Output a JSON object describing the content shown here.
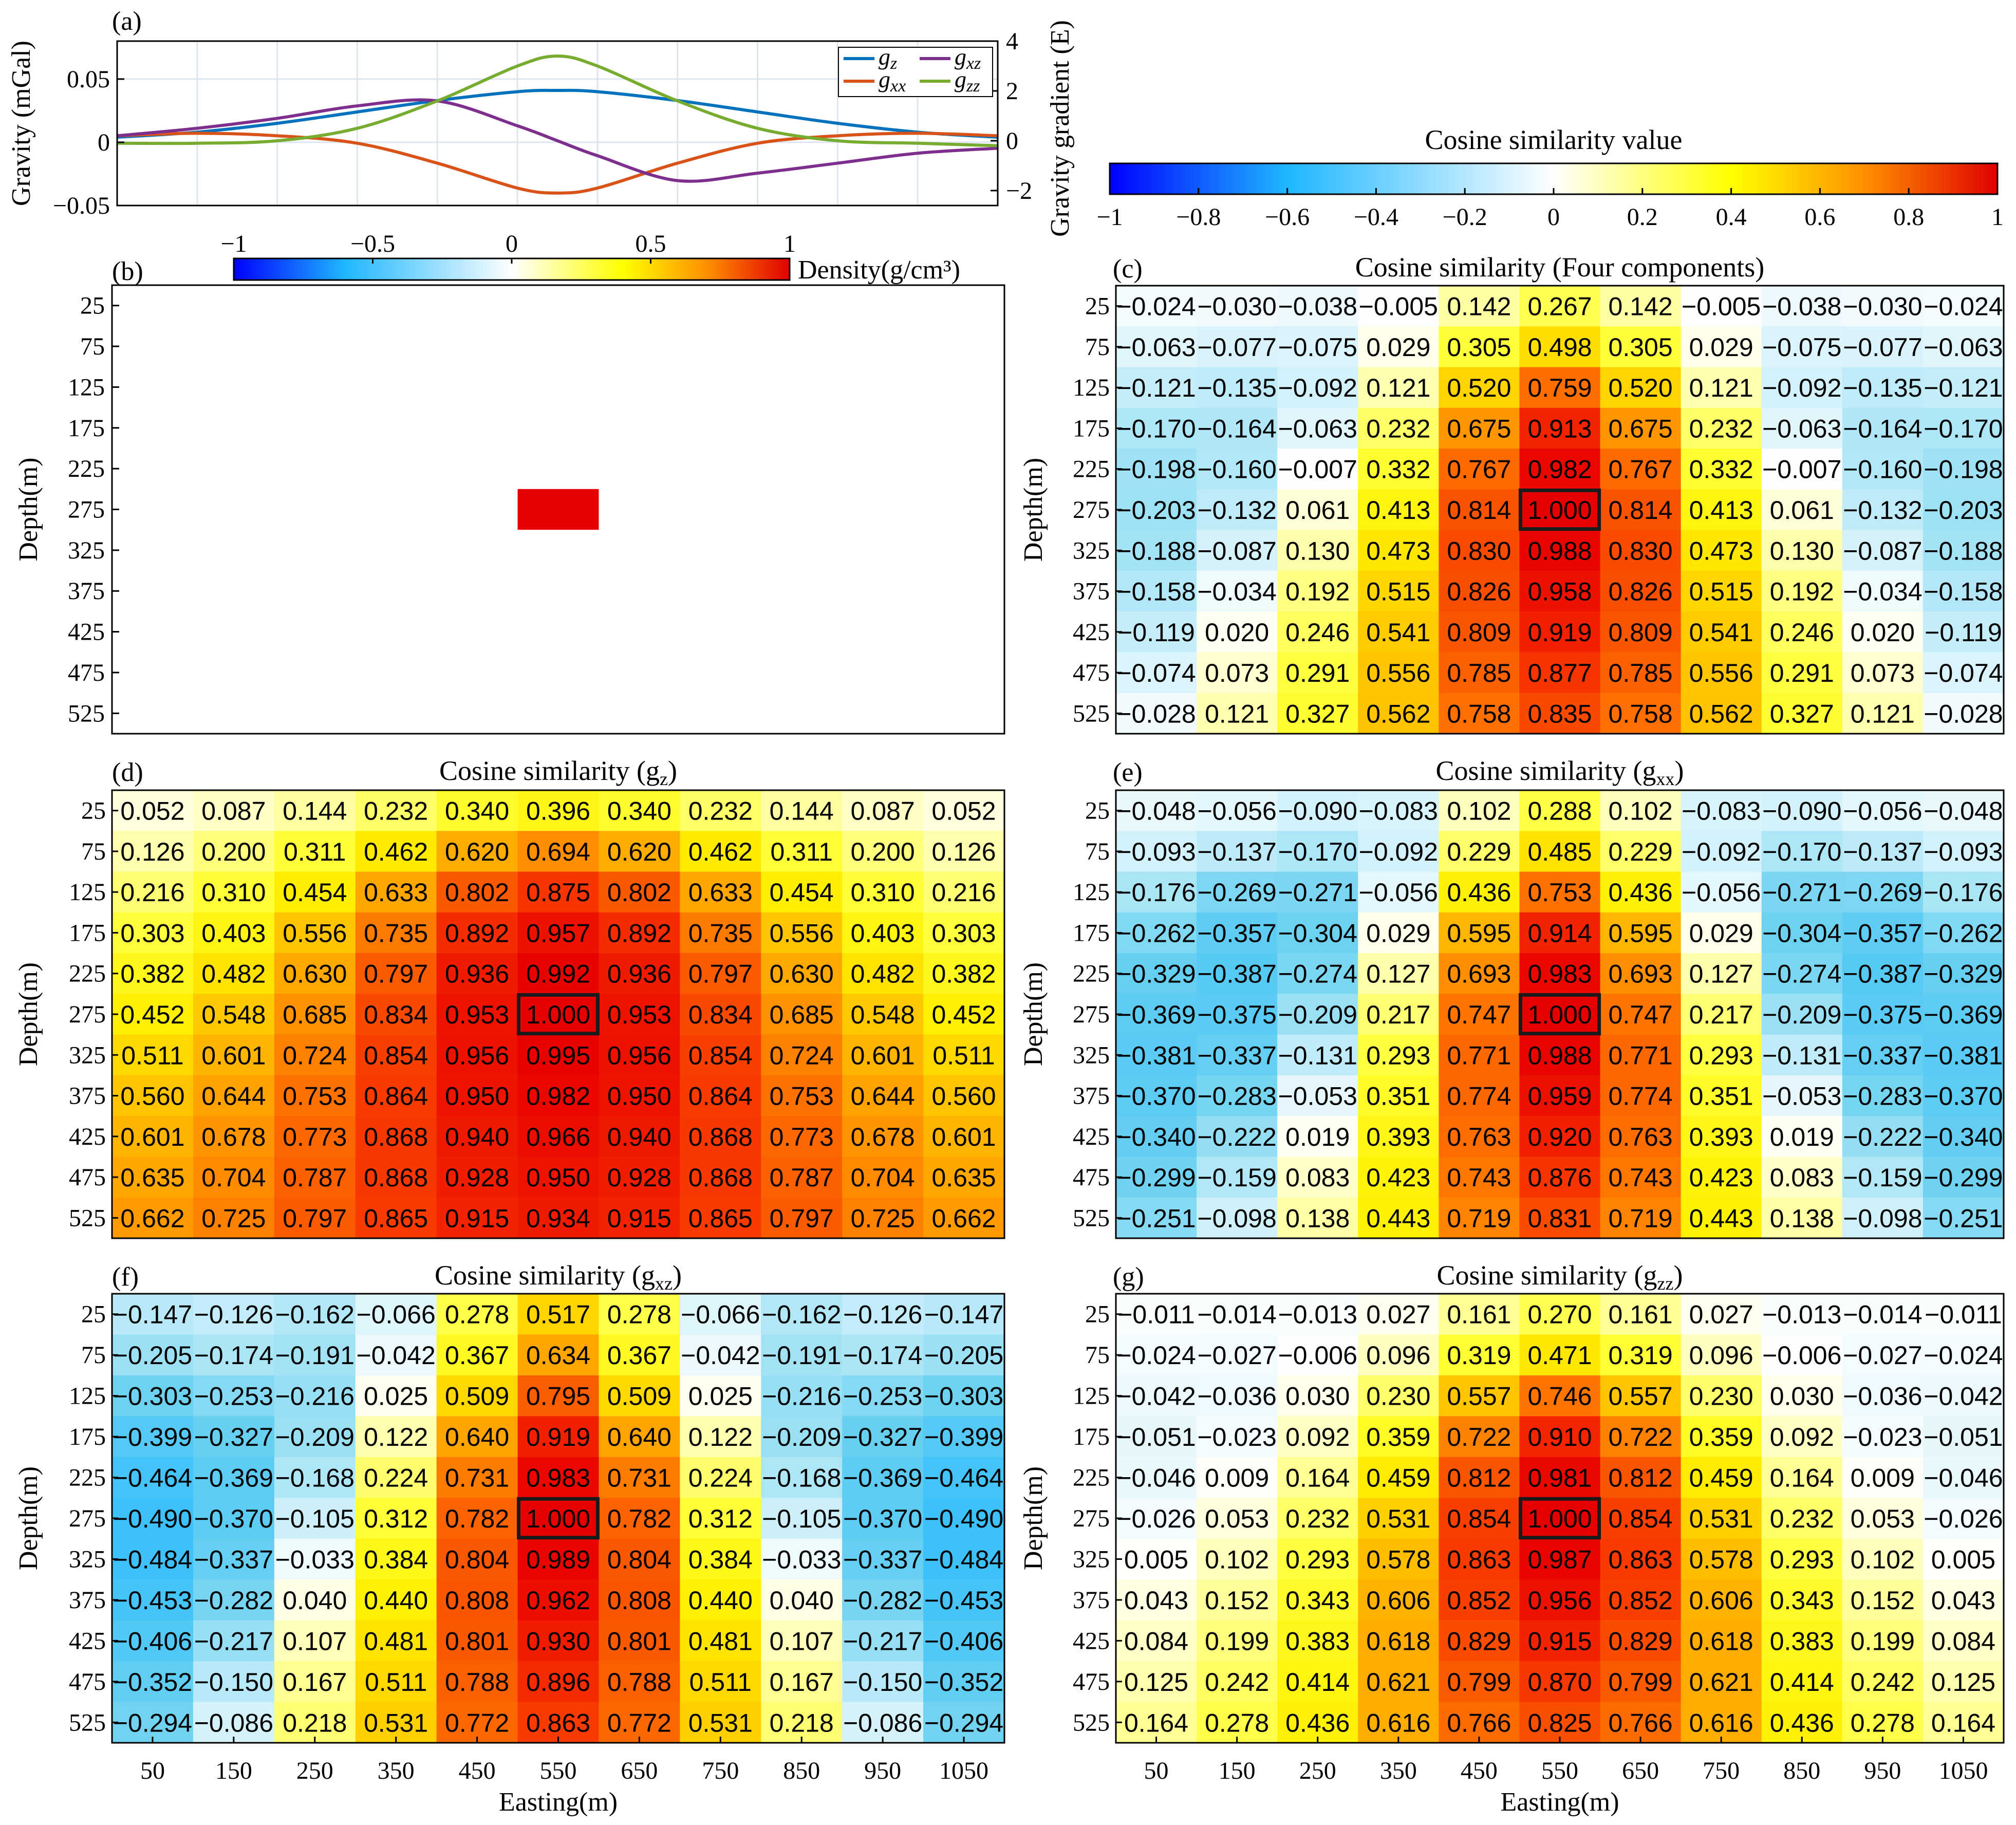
{
  "chart_data": [
    {
      "panel": "(a)",
      "type": "line",
      "ylabel": "Gravity (mGal)",
      "ylabel_right": "Gravity gradient (E)",
      "ylim": [
        -0.05,
        0.08
      ],
      "ylim_right": [
        -2.6,
        4.0
      ],
      "yticks": [
        "0.05",
        "0",
        "-0.05"
      ],
      "yticks_right": [
        "4",
        "2",
        "0",
        "-2"
      ],
      "xlim": [
        0,
        1100
      ],
      "x": [
        0,
        100,
        200,
        300,
        400,
        500,
        550,
        600,
        700,
        800,
        900,
        1000,
        1100
      ],
      "legend": {
        "position": "top-right"
      },
      "series": [
        {
          "name": "g_z",
          "label": "g",
          "sub": "z",
          "axis": "left",
          "color": "#0072BD",
          "values": [
            0.004,
            0.008,
            0.015,
            0.024,
            0.033,
            0.04,
            0.041,
            0.04,
            0.033,
            0.024,
            0.015,
            0.008,
            0.004
          ]
        },
        {
          "name": "g_xx",
          "label": "g",
          "sub": "xx",
          "axis": "right",
          "color": "#D95319",
          "values": [
            0.2,
            0.3,
            0.2,
            -0.1,
            -0.9,
            -1.9,
            -2.1,
            -1.9,
            -0.9,
            -0.1,
            0.2,
            0.3,
            0.2
          ]
        },
        {
          "name": "g_xz",
          "label": "g",
          "sub": "xz",
          "axis": "right",
          "color": "#7E2F8E",
          "values": [
            0.2,
            0.5,
            0.9,
            1.4,
            1.6,
            0.6,
            0.0,
            -0.6,
            -1.6,
            -1.3,
            -0.9,
            -0.5,
            -0.3
          ]
        },
        {
          "name": "g_zz",
          "label": "g",
          "sub": "zz",
          "axis": "right",
          "color": "#77AC30",
          "values": [
            -0.1,
            -0.1,
            0.0,
            0.5,
            1.6,
            3.0,
            3.4,
            3.0,
            1.6,
            0.5,
            0.0,
            -0.1,
            -0.2
          ]
        }
      ]
    },
    {
      "panel": "(b)",
      "type": "heatmap",
      "ylabel": "Depth(m)",
      "colorbar_label": "Density(g/cm³)",
      "colorbar_ticks": [
        "−1",
        "−0.5",
        "0",
        "0.5",
        "1"
      ],
      "depths": [
        "25",
        "75",
        "125",
        "175",
        "225",
        "275",
        "325",
        "375",
        "425",
        "475",
        "525"
      ],
      "block": {
        "easting": [
          500,
          600
        ],
        "depth": [
          250,
          300
        ],
        "density": 1.0
      }
    },
    {
      "panel": "colorbar",
      "type": "heatmap",
      "title": "Cosine similarity value",
      "ticks": [
        "−1",
        "−0.8",
        "−0.6",
        "−0.4",
        "−0.2",
        "0",
        "0.2",
        "0.4",
        "0.6",
        "0.8",
        "1"
      ]
    },
    {
      "panel": "(c)",
      "type": "table",
      "title": "Cosine similarity (Four components)",
      "ylabel": "Depth(m)",
      "xlabel": "",
      "highlight": [
        5,
        5
      ],
      "depths": [
        "25",
        "75",
        "125",
        "175",
        "225",
        "275",
        "325",
        "375",
        "425",
        "475",
        "525"
      ],
      "eastings": [
        "50",
        "150",
        "250",
        "350",
        "450",
        "550",
        "650",
        "750",
        "850",
        "950",
        "1050"
      ],
      "rows": [
        [
          "−0.024",
          "−0.030",
          "−0.038",
          "−0.005",
          "0.142",
          "0.267",
          "0.142",
          "−0.005",
          "−0.038",
          "−0.030",
          "−0.024"
        ],
        [
          "−0.063",
          "−0.077",
          "−0.075",
          "0.029",
          "0.305",
          "0.498",
          "0.305",
          "0.029",
          "−0.075",
          "−0.077",
          "−0.063"
        ],
        [
          "−0.121",
          "−0.135",
          "−0.092",
          "0.121",
          "0.520",
          "0.759",
          "0.520",
          "0.121",
          "−0.092",
          "−0.135",
          "−0.121"
        ],
        [
          "−0.170",
          "−0.164",
          "−0.063",
          "0.232",
          "0.675",
          "0.913",
          "0.675",
          "0.232",
          "−0.063",
          "−0.164",
          "−0.170"
        ],
        [
          "−0.198",
          "−0.160",
          "−0.007",
          "0.332",
          "0.767",
          "0.982",
          "0.767",
          "0.332",
          "−0.007",
          "−0.160",
          "−0.198"
        ],
        [
          "−0.203",
          "−0.132",
          "0.061",
          "0.413",
          "0.814",
          "1.000",
          "0.814",
          "0.413",
          "0.061",
          "−0.132",
          "−0.203"
        ],
        [
          "−0.188",
          "−0.087",
          "0.130",
          "0.473",
          "0.830",
          "0.988",
          "0.830",
          "0.473",
          "0.130",
          "−0.087",
          "−0.188"
        ],
        [
          "−0.158",
          "−0.034",
          "0.192",
          "0.515",
          "0.826",
          "0.958",
          "0.826",
          "0.515",
          "0.192",
          "−0.034",
          "−0.158"
        ],
        [
          "−0.119",
          "0.020",
          "0.246",
          "0.541",
          "0.809",
          "0.919",
          "0.809",
          "0.541",
          "0.246",
          "0.020",
          "−0.119"
        ],
        [
          "−0.074",
          "0.073",
          "0.291",
          "0.556",
          "0.785",
          "0.877",
          "0.785",
          "0.556",
          "0.291",
          "0.073",
          "−0.074"
        ],
        [
          "−0.028",
          "0.121",
          "0.327",
          "0.562",
          "0.758",
          "0.835",
          "0.758",
          "0.562",
          "0.327",
          "0.121",
          "−0.028"
        ]
      ]
    },
    {
      "panel": "(d)",
      "type": "table",
      "title": "Cosine similarity (g",
      "title_sub": "z",
      "title_end": ")",
      "ylabel": "Depth(m)",
      "xlabel": "",
      "highlight": [
        5,
        5
      ],
      "depths": [
        "25",
        "75",
        "125",
        "175",
        "225",
        "275",
        "325",
        "375",
        "425",
        "475",
        "525"
      ],
      "eastings": [
        "50",
        "150",
        "250",
        "350",
        "450",
        "550",
        "650",
        "750",
        "850",
        "950",
        "1050"
      ],
      "rows": [
        [
          "0.052",
          "0.087",
          "0.144",
          "0.232",
          "0.340",
          "0.396",
          "0.340",
          "0.232",
          "0.144",
          "0.087",
          "0.052"
        ],
        [
          "0.126",
          "0.200",
          "0.311",
          "0.462",
          "0.620",
          "0.694",
          "0.620",
          "0.462",
          "0.311",
          "0.200",
          "0.126"
        ],
        [
          "0.216",
          "0.310",
          "0.454",
          "0.633",
          "0.802",
          "0.875",
          "0.802",
          "0.633",
          "0.454",
          "0.310",
          "0.216"
        ],
        [
          "0.303",
          "0.403",
          "0.556",
          "0.735",
          "0.892",
          "0.957",
          "0.892",
          "0.735",
          "0.556",
          "0.403",
          "0.303"
        ],
        [
          "0.382",
          "0.482",
          "0.630",
          "0.797",
          "0.936",
          "0.992",
          "0.936",
          "0.797",
          "0.630",
          "0.482",
          "0.382"
        ],
        [
          "0.452",
          "0.548",
          "0.685",
          "0.834",
          "0.953",
          "1.000",
          "0.953",
          "0.834",
          "0.685",
          "0.548",
          "0.452"
        ],
        [
          "0.511",
          "0.601",
          "0.724",
          "0.854",
          "0.956",
          "0.995",
          "0.956",
          "0.854",
          "0.724",
          "0.601",
          "0.511"
        ],
        [
          "0.560",
          "0.644",
          "0.753",
          "0.864",
          "0.950",
          "0.982",
          "0.950",
          "0.864",
          "0.753",
          "0.644",
          "0.560"
        ],
        [
          "0.601",
          "0.678",
          "0.773",
          "0.868",
          "0.940",
          "0.966",
          "0.940",
          "0.868",
          "0.773",
          "0.678",
          "0.601"
        ],
        [
          "0.635",
          "0.704",
          "0.787",
          "0.868",
          "0.928",
          "0.950",
          "0.928",
          "0.868",
          "0.787",
          "0.704",
          "0.635"
        ],
        [
          "0.662",
          "0.725",
          "0.797",
          "0.865",
          "0.915",
          "0.934",
          "0.915",
          "0.865",
          "0.797",
          "0.725",
          "0.662"
        ]
      ]
    },
    {
      "panel": "(e)",
      "type": "table",
      "title": "Cosine similarity (g",
      "title_sub": "xx",
      "title_end": ")",
      "ylabel": "Depth(m)",
      "xlabel": "",
      "highlight": [
        5,
        5
      ],
      "depths": [
        "25",
        "75",
        "125",
        "175",
        "225",
        "275",
        "325",
        "375",
        "425",
        "475",
        "525"
      ],
      "eastings": [
        "50",
        "150",
        "250",
        "350",
        "450",
        "550",
        "650",
        "750",
        "850",
        "950",
        "1050"
      ],
      "rows": [
        [
          "−0.048",
          "−0.056",
          "−0.090",
          "−0.083",
          "0.102",
          "0.288",
          "0.102",
          "−0.083",
          "−0.090",
          "−0.056",
          "−0.048"
        ],
        [
          "−0.093",
          "−0.137",
          "−0.170",
          "−0.092",
          "0.229",
          "0.485",
          "0.229",
          "−0.092",
          "−0.170",
          "−0.137",
          "−0.093"
        ],
        [
          "−0.176",
          "−0.269",
          "−0.271",
          "−0.056",
          "0.436",
          "0.753",
          "0.436",
          "−0.056",
          "−0.271",
          "−0.269",
          "−0.176"
        ],
        [
          "−0.262",
          "−0.357",
          "−0.304",
          "0.029",
          "0.595",
          "0.914",
          "0.595",
          "0.029",
          "−0.304",
          "−0.357",
          "−0.262"
        ],
        [
          "−0.329",
          "−0.387",
          "−0.274",
          "0.127",
          "0.693",
          "0.983",
          "0.693",
          "0.127",
          "−0.274",
          "−0.387",
          "−0.329"
        ],
        [
          "−0.369",
          "−0.375",
          "−0.209",
          "0.217",
          "0.747",
          "1.000",
          "0.747",
          "0.217",
          "−0.209",
          "−0.375",
          "−0.369"
        ],
        [
          "−0.381",
          "−0.337",
          "−0.131",
          "0.293",
          "0.771",
          "0.988",
          "0.771",
          "0.293",
          "−0.131",
          "−0.337",
          "−0.381"
        ],
        [
          "−0.370",
          "−0.283",
          "−0.053",
          "0.351",
          "0.774",
          "0.959",
          "0.774",
          "0.351",
          "−0.053",
          "−0.283",
          "−0.370"
        ],
        [
          "−0.340",
          "−0.222",
          "0.019",
          "0.393",
          "0.763",
          "0.920",
          "0.763",
          "0.393",
          "0.019",
          "−0.222",
          "−0.340"
        ],
        [
          "−0.299",
          "−0.159",
          "0.083",
          "0.423",
          "0.743",
          "0.876",
          "0.743",
          "0.423",
          "0.083",
          "−0.159",
          "−0.299"
        ],
        [
          "−0.251",
          "−0.098",
          "0.138",
          "0.443",
          "0.719",
          "0.831",
          "0.719",
          "0.443",
          "0.138",
          "−0.098",
          "−0.251"
        ]
      ]
    },
    {
      "panel": "(f)",
      "type": "table",
      "title": "Cosine similarity (g",
      "title_sub": "xz",
      "title_end": ")",
      "ylabel": "Depth(m)",
      "xlabel": "Easting(m)",
      "highlight": [
        5,
        5
      ],
      "depths": [
        "25",
        "75",
        "125",
        "175",
        "225",
        "275",
        "325",
        "375",
        "425",
        "475",
        "525"
      ],
      "eastings": [
        "50",
        "150",
        "250",
        "350",
        "450",
        "550",
        "650",
        "750",
        "850",
        "950",
        "1050"
      ],
      "rows": [
        [
          "−0.147",
          "−0.126",
          "−0.162",
          "−0.066",
          "0.278",
          "0.517",
          "0.278",
          "−0.066",
          "−0.162",
          "−0.126",
          "−0.147"
        ],
        [
          "−0.205",
          "−0.174",
          "−0.191",
          "−0.042",
          "0.367",
          "0.634",
          "0.367",
          "−0.042",
          "−0.191",
          "−0.174",
          "−0.205"
        ],
        [
          "−0.303",
          "−0.253",
          "−0.216",
          "0.025",
          "0.509",
          "0.795",
          "0.509",
          "0.025",
          "−0.216",
          "−0.253",
          "−0.303"
        ],
        [
          "−0.399",
          "−0.327",
          "−0.209",
          "0.122",
          "0.640",
          "0.919",
          "0.640",
          "0.122",
          "−0.209",
          "−0.327",
          "−0.399"
        ],
        [
          "−0.464",
          "−0.369",
          "−0.168",
          "0.224",
          "0.731",
          "0.983",
          "0.731",
          "0.224",
          "−0.168",
          "−0.369",
          "−0.464"
        ],
        [
          "−0.490",
          "−0.370",
          "−0.105",
          "0.312",
          "0.782",
          "1.000",
          "0.782",
          "0.312",
          "−0.105",
          "−0.370",
          "−0.490"
        ],
        [
          "−0.484",
          "−0.337",
          "−0.033",
          "0.384",
          "0.804",
          "0.989",
          "0.804",
          "0.384",
          "−0.033",
          "−0.337",
          "−0.484"
        ],
        [
          "−0.453",
          "−0.282",
          "0.040",
          "0.440",
          "0.808",
          "0.962",
          "0.808",
          "0.440",
          "0.040",
          "−0.282",
          "−0.453"
        ],
        [
          "−0.406",
          "−0.217",
          "0.107",
          "0.481",
          "0.801",
          "0.930",
          "0.801",
          "0.481",
          "0.107",
          "−0.217",
          "−0.406"
        ],
        [
          "−0.352",
          "−0.150",
          "0.167",
          "0.511",
          "0.788",
          "0.896",
          "0.788",
          "0.511",
          "0.167",
          "−0.150",
          "−0.352"
        ],
        [
          "−0.294",
          "−0.086",
          "0.218",
          "0.531",
          "0.772",
          "0.863",
          "0.772",
          "0.531",
          "0.218",
          "−0.086",
          "−0.294"
        ]
      ]
    },
    {
      "panel": "(g)",
      "type": "table",
      "title": "Cosine similarity (g",
      "title_sub": "zz",
      "title_end": ")",
      "ylabel": "Depth(m)",
      "xlabel": "Easting(m)",
      "highlight": [
        5,
        5
      ],
      "depths": [
        "25",
        "75",
        "125",
        "175",
        "225",
        "275",
        "325",
        "375",
        "425",
        "475",
        "525"
      ],
      "eastings": [
        "50",
        "150",
        "250",
        "350",
        "450",
        "550",
        "650",
        "750",
        "850",
        "950",
        "1050"
      ],
      "rows": [
        [
          "−0.011",
          "−0.014",
          "−0.013",
          "0.027",
          "0.161",
          "0.270",
          "0.161",
          "0.027",
          "−0.013",
          "−0.014",
          "−0.011"
        ],
        [
          "−0.024",
          "−0.027",
          "−0.006",
          "0.096",
          "0.319",
          "0.471",
          "0.319",
          "0.096",
          "−0.006",
          "−0.027",
          "−0.024"
        ],
        [
          "−0.042",
          "−0.036",
          "0.030",
          "0.230",
          "0.557",
          "0.746",
          "0.557",
          "0.230",
          "0.030",
          "−0.036",
          "−0.042"
        ],
        [
          "−0.051",
          "−0.023",
          "0.092",
          "0.359",
          "0.722",
          "0.910",
          "0.722",
          "0.359",
          "0.092",
          "−0.023",
          "−0.051"
        ],
        [
          "−0.046",
          "0.009",
          "0.164",
          "0.459",
          "0.812",
          "0.981",
          "0.812",
          "0.459",
          "0.164",
          "0.009",
          "−0.046"
        ],
        [
          "−0.026",
          "0.053",
          "0.232",
          "0.531",
          "0.854",
          "1.000",
          "0.854",
          "0.531",
          "0.232",
          "0.053",
          "−0.026"
        ],
        [
          "0.005",
          "0.102",
          "0.293",
          "0.578",
          "0.863",
          "0.987",
          "0.863",
          "0.578",
          "0.293",
          "0.102",
          "0.005"
        ],
        [
          "0.043",
          "0.152",
          "0.343",
          "0.606",
          "0.852",
          "0.956",
          "0.852",
          "0.606",
          "0.343",
          "0.152",
          "0.043"
        ],
        [
          "0.084",
          "0.199",
          "0.383",
          "0.618",
          "0.829",
          "0.915",
          "0.829",
          "0.618",
          "0.383",
          "0.199",
          "0.084"
        ],
        [
          "0.125",
          "0.242",
          "0.414",
          "0.621",
          "0.799",
          "0.870",
          "0.799",
          "0.621",
          "0.414",
          "0.242",
          "0.125"
        ],
        [
          "0.164",
          "0.278",
          "0.436",
          "0.616",
          "0.766",
          "0.825",
          "0.766",
          "0.616",
          "0.436",
          "0.278",
          "0.164"
        ]
      ]
    }
  ]
}
